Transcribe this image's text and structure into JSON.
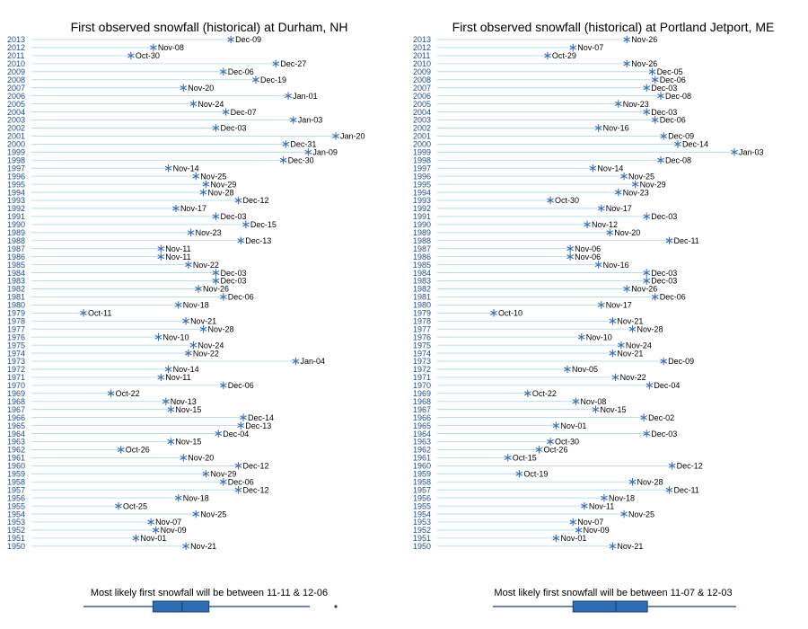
{
  "colors": {
    "stem": "#aad4ea",
    "marker": "#3a6fb5",
    "year_text": "#1f4e8a",
    "box_fill": "#2e6db4",
    "box_stroke": "#1f3f6e"
  },
  "chart_data": [
    {
      "type": "scatter",
      "title": "First observed snowfall (historical) at Durham, NH",
      "caption": "Most likely first snowfall will be between 11-11 & 12-06",
      "years": [
        2013,
        2012,
        2011,
        2010,
        2009,
        2008,
        2007,
        2006,
        2005,
        2004,
        2003,
        2002,
        2001,
        2000,
        1999,
        1998,
        1997,
        1996,
        1995,
        1994,
        1993,
        1992,
        1991,
        1990,
        1989,
        1988,
        1987,
        1986,
        1985,
        1984,
        1983,
        1982,
        1981,
        1980,
        1979,
        1978,
        1977,
        1976,
        1975,
        1974,
        1973,
        1972,
        1971,
        1970,
        1969,
        1968,
        1967,
        1966,
        1965,
        1964,
        1963,
        1962,
        1961,
        1960,
        1959,
        1958,
        1957,
        1956,
        1955,
        1954,
        1953,
        1952,
        1951,
        1950
      ],
      "dates": [
        "Dec-09",
        "Nov-08",
        "Oct-30",
        "Dec-27",
        "Dec-06",
        "Dec-19",
        "Nov-20",
        "Jan-01",
        "Nov-24",
        "Dec-07",
        "Jan-03",
        "Dec-03",
        "Jan-20",
        "Dec-31",
        "Jan-09",
        "Dec-30",
        "Nov-14",
        "Nov-25",
        "Nov-29",
        "Nov-28",
        "Dec-12",
        "Nov-17",
        "Dec-03",
        "Dec-15",
        "Nov-23",
        "Dec-13",
        "Nov-11",
        "Nov-11",
        "Nov-22",
        "Dec-03",
        "Dec-03",
        "Nov-26",
        "Dec-06",
        "Nov-18",
        "Oct-11",
        "Nov-21",
        "Nov-28",
        "Nov-10",
        "Nov-24",
        "Nov-22",
        "Jan-04",
        "Nov-14",
        "Nov-11",
        "Dec-06",
        "Oct-22",
        "Nov-13",
        "Nov-15",
        "Dec-14",
        "Dec-13",
        "Dec-04",
        "Nov-15",
        "Oct-26",
        "Nov-20",
        "Dec-12",
        "Nov-29",
        "Dec-06",
        "Dec-12",
        "Nov-18",
        "Oct-25",
        "Nov-25",
        "Nov-07",
        "Nov-09",
        "Nov-01",
        "Nov-21"
      ],
      "range_start": "Oct-11",
      "range_end": "Jan-20",
      "box": {
        "q1": "11-11",
        "median": "11-24",
        "q3": "12-06"
      },
      "whisker": {
        "low": "Oct-11",
        "high": "Jan-20"
      },
      "outliers": [
        "Jan-20"
      ]
    },
    {
      "type": "scatter",
      "title": "First observed snowfall (historical) at Portland Jetport, ME",
      "caption": "Most likely first snowfall will be between 11-07 & 12-03",
      "years": [
        2013,
        2012,
        2011,
        2010,
        2009,
        2008,
        2007,
        2006,
        2005,
        2004,
        2003,
        2002,
        2001,
        2000,
        1999,
        1998,
        1997,
        1996,
        1995,
        1994,
        1993,
        1992,
        1991,
        1990,
        1989,
        1988,
        1987,
        1986,
        1985,
        1984,
        1983,
        1982,
        1981,
        1980,
        1979,
        1978,
        1977,
        1976,
        1975,
        1974,
        1973,
        1972,
        1971,
        1970,
        1969,
        1968,
        1967,
        1966,
        1965,
        1964,
        1963,
        1962,
        1961,
        1960,
        1959,
        1958,
        1957,
        1956,
        1955,
        1954,
        1953,
        1952,
        1951,
        1950
      ],
      "dates": [
        "Nov-26",
        "Nov-07",
        "Oct-29",
        "Nov-26",
        "Dec-05",
        "Dec-06",
        "Dec-03",
        "Dec-08",
        "Nov-23",
        "Dec-03",
        "Dec-06",
        "Nov-16",
        "Dec-09",
        "Dec-14",
        "Jan-03",
        "Dec-08",
        "Nov-14",
        "Nov-25",
        "Nov-29",
        "Nov-23",
        "Oct-30",
        "Nov-17",
        "Dec-03",
        "Nov-12",
        "Nov-20",
        "Dec-11",
        "Nov-06",
        "Nov-06",
        "Nov-16",
        "Dec-03",
        "Dec-03",
        "Nov-26",
        "Dec-06",
        "Nov-17",
        "Oct-10",
        "Nov-21",
        "Nov-28",
        "Nov-10",
        "Nov-24",
        "Nov-21",
        "Dec-09",
        "Nov-05",
        "Nov-22",
        "Dec-04",
        "Oct-22",
        "Nov-08",
        "Nov-15",
        "Dec-02",
        "Nov-01",
        "Dec-03",
        "Oct-30",
        "Oct-26",
        "Oct-15",
        "Dec-12",
        "Oct-19",
        "Nov-28",
        "Dec-11",
        "Nov-18",
        "Nov-11",
        "Nov-25",
        "Nov-07",
        "Nov-09",
        "Nov-01",
        "Nov-21"
      ],
      "range_start": "Oct-10",
      "range_end": "Jan-03",
      "box": {
        "q1": "11-07",
        "median": "11-22",
        "q3": "12-03"
      },
      "whisker": {
        "low": "Oct-10",
        "high": "Jan-03"
      },
      "outliers": []
    }
  ]
}
